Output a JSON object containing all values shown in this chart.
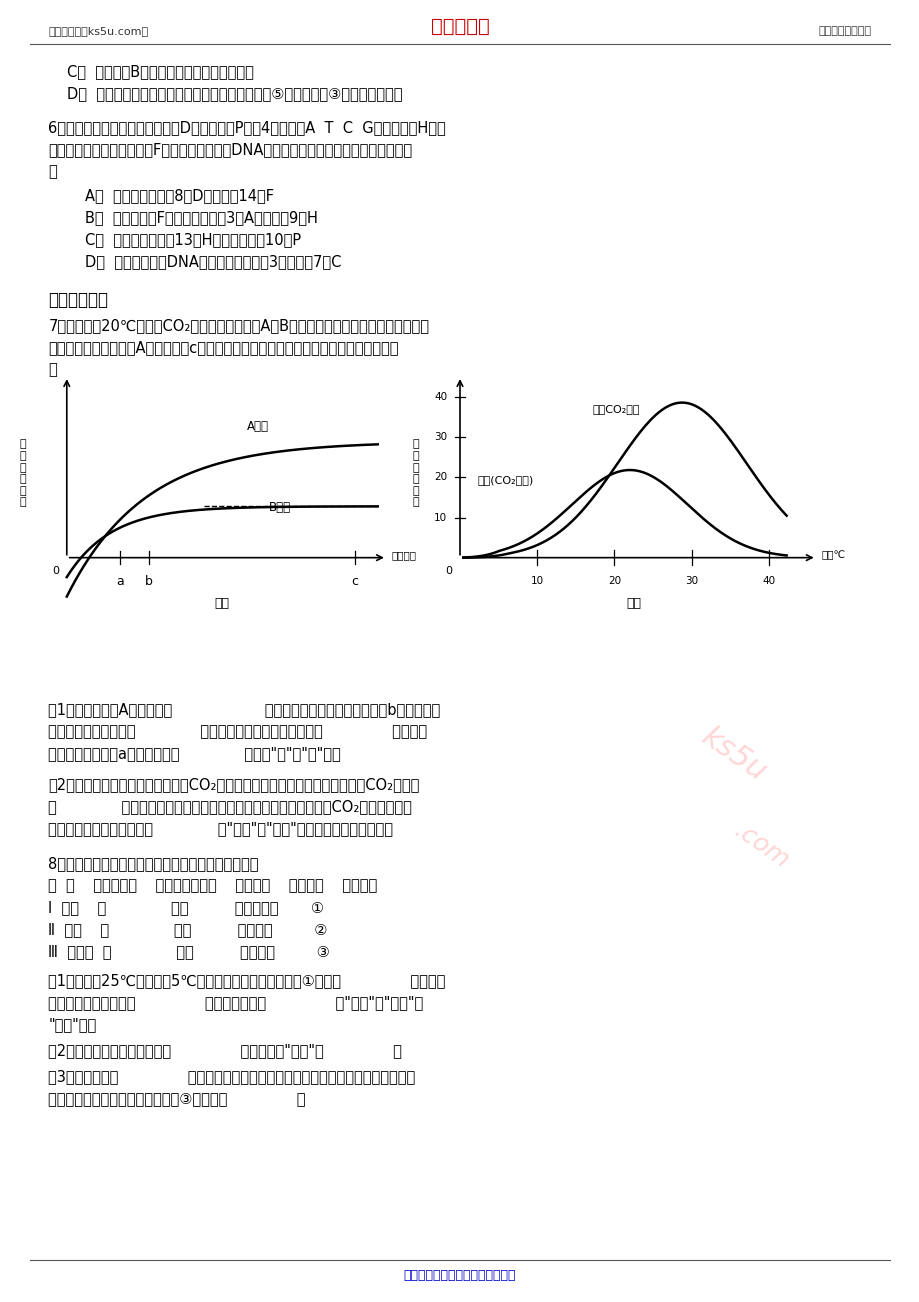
{
  "bg_color": "#ffffff",
  "header_left": "高考资源网（ks5u.com）",
  "header_center": "高考资源网",
  "header_right": "您身边的高考专家",
  "footer_center": "高考资源网版权所有，侵权必究！",
  "fs": 10.5,
  "header_color_left": "#333333",
  "header_color_center": "#cc0000",
  "footer_color": "#0000cc"
}
